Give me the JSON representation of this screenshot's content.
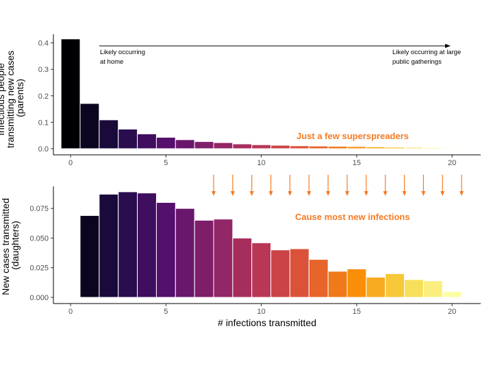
{
  "chart_data": [
    {
      "type": "bar",
      "ylabel_lines": [
        "Infectious people",
        "transmitting new cases",
        "(parents)"
      ],
      "xlim": [
        -0.9,
        21.5
      ],
      "ylim": [
        0,
        0.43
      ],
      "x_ticks": [
        0,
        5,
        10,
        15,
        20
      ],
      "y_ticks": [
        0.0,
        0.1,
        0.2,
        0.3,
        0.4
      ],
      "y_tick_labels": [
        "0.0",
        "0.1",
        "0.2",
        "0.3",
        "0.4"
      ],
      "x": [
        0,
        1,
        2,
        3,
        4,
        5,
        6,
        7,
        8,
        9,
        10,
        11,
        12,
        13,
        14,
        15,
        16,
        17,
        18,
        19,
        20
      ],
      "values": [
        0.415,
        0.171,
        0.109,
        0.074,
        0.056,
        0.043,
        0.034,
        0.027,
        0.023,
        0.018,
        0.015,
        0.013,
        0.011,
        0.01,
        0.009,
        0.008,
        0.007,
        0.006,
        0.005,
        0.004,
        0.003
      ],
      "annotations": {
        "left_lines": [
          "Likely occurring",
          "at home"
        ],
        "right_lines": [
          "Likely occurring at large",
          "public gatherings"
        ],
        "highlight": "Just a few superspreaders"
      }
    },
    {
      "type": "bar",
      "xlabel": "# infections transmitted",
      "ylabel_lines": [
        "New cases transmitted",
        "(daughters)"
      ],
      "xlim": [
        -0.9,
        21.5
      ],
      "ylim": [
        0,
        0.093
      ],
      "x_ticks": [
        0,
        5,
        10,
        15,
        20
      ],
      "y_ticks": [
        0.0,
        0.025,
        0.05,
        0.075
      ],
      "y_tick_labels": [
        "0.000",
        "0.025",
        "0.050",
        "0.075"
      ],
      "x": [
        0,
        1,
        2,
        3,
        4,
        5,
        6,
        7,
        8,
        9,
        10,
        11,
        12,
        13,
        14,
        15,
        16,
        17,
        18,
        19,
        20
      ],
      "values": [
        0.0,
        0.069,
        0.087,
        0.089,
        0.088,
        0.08,
        0.075,
        0.065,
        0.066,
        0.05,
        0.046,
        0.04,
        0.041,
        0.032,
        0.022,
        0.024,
        0.017,
        0.02,
        0.015,
        0.014,
        0.005
      ],
      "arrow_x": [
        7.5,
        8.5,
        9.5,
        10.5,
        11.5,
        12.5,
        13.5,
        14.5,
        15.5,
        16.5,
        17.5,
        18.5,
        19.5,
        20.5
      ],
      "annotations": {
        "highlight": "Cause most new infections"
      }
    }
  ],
  "colors": {
    "palette": [
      "#000004",
      "#1f0c48",
      "#550f6d",
      "#88226a",
      "#ba3655",
      "#e35933",
      "#f98e09",
      "#f6d746",
      "#fcffa4"
    ],
    "accent": "#F47B25",
    "axis": "#000000",
    "tick_text": "#4d4d4d"
  }
}
